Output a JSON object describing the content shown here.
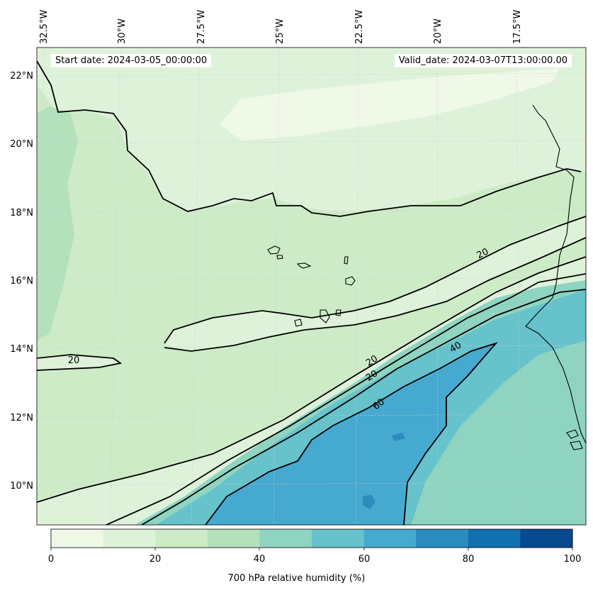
{
  "header": {
    "start_date": "Start date: 2024-03-05_00:00:00",
    "valid_date": "Valid_date: 2024-03-07T13:00:00.00"
  },
  "lon_labels": [
    "32.5°W",
    "30°W",
    "27.5°W",
    "25°W",
    "22.5°W",
    "20°W",
    "17.5°W"
  ],
  "lat_labels": [
    "22°N",
    "20°N",
    "18°N",
    "16°N",
    "14°N",
    "12°N",
    "10°N"
  ],
  "contour_labels": [
    "20",
    "20",
    "20",
    "20",
    "40",
    "60"
  ],
  "colorbar": {
    "label": "700 hPa relative humidity (%)",
    "ticks": [
      "0",
      "20",
      "40",
      "60",
      "80",
      "100"
    ],
    "colors": [
      "#f0f9e8",
      "#def2d9",
      "#cdebc6",
      "#b3e1bc",
      "#8ed4c1",
      "#66c2cb",
      "#46a9d0",
      "#2b8cbe",
      "#1170b0",
      "#084a8f"
    ]
  }
}
